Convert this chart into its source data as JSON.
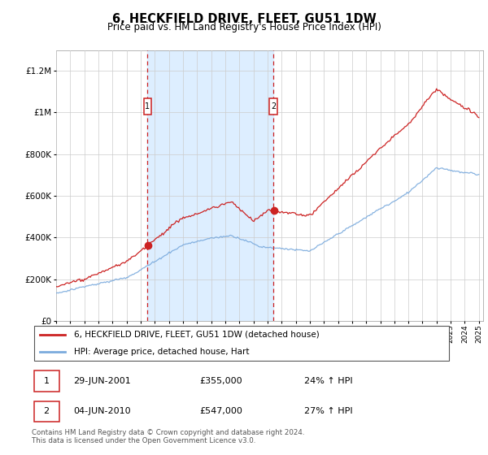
{
  "title": "6, HECKFIELD DRIVE, FLEET, GU51 1DW",
  "subtitle": "Price paid vs. HM Land Registry's House Price Index (HPI)",
  "ylim": [
    0,
    1300000
  ],
  "yticks": [
    0,
    200000,
    400000,
    600000,
    800000,
    1000000,
    1200000
  ],
  "ytick_labels": [
    "£0",
    "£200K",
    "£400K",
    "£600K",
    "£800K",
    "£1M",
    "£1.2M"
  ],
  "x_start_year": 1995,
  "x_end_year": 2025,
  "sale1_date": 2001.49,
  "sale1_price": 355000,
  "sale1_label": "1",
  "sale1_text": "29-JUN-2001",
  "sale1_amount": "£355,000",
  "sale1_pct": "24% ↑ HPI",
  "sale2_date": 2010.42,
  "sale2_price": 547000,
  "sale2_label": "2",
  "sale2_text": "04-JUN-2010",
  "sale2_amount": "£547,000",
  "sale2_pct": "27% ↑ HPI",
  "hpi_line_color": "#7aaadd",
  "price_line_color": "#cc2222",
  "sale_marker_color": "#cc2222",
  "sale_dot_color": "#cc2222",
  "shaded_region_color": "#ddeeff",
  "grid_color": "#cccccc",
  "background_color": "#ffffff",
  "legend_label_price": "6, HECKFIELD DRIVE, FLEET, GU51 1DW (detached house)",
  "legend_label_hpi": "HPI: Average price, detached house, Hart",
  "footnote": "Contains HM Land Registry data © Crown copyright and database right 2024.\nThis data is licensed under the Open Government Licence v3.0."
}
